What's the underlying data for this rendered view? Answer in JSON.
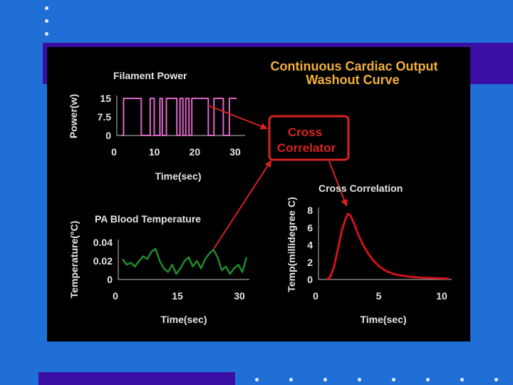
{
  "title": {
    "line1": "Continuous Cardiac Output",
    "line2": "Washout Curve"
  },
  "filament": {
    "title": "Filament Power",
    "ylabel": "Power(w)",
    "yticks": [
      "15",
      "7.5",
      "0"
    ],
    "xticks": [
      "0",
      "10",
      "20",
      "30"
    ],
    "xlabel": "Time(sec)"
  },
  "pa": {
    "title": "PA Blood Temperature",
    "ylabel": "Temperature(°C)",
    "yticks": [
      "0.04",
      "0.02",
      "0"
    ],
    "xticks": [
      "0",
      "15",
      "30"
    ],
    "xlabel": "Time(sec)"
  },
  "correlator": {
    "line1": "Cross",
    "line2": "Correlator"
  },
  "cross": {
    "title": "Cross Correlation",
    "ylabel": "Temp(millidegree C)",
    "yticks": [
      "8",
      "6",
      "4",
      "2",
      "0"
    ],
    "xticks": [
      "0",
      "5",
      "10"
    ],
    "xlabel": "Time(sec)"
  },
  "colors": {
    "background": "#1f6fd6",
    "band": "#3b0fa5",
    "title": "#f2b03a",
    "text": "#e6e6e6",
    "power_trace": "#e066c8",
    "temperature_trace": "#1e8c2a",
    "correlation_curve": "#d0121a",
    "correlator_box": "#d8231f"
  },
  "chart_data": [
    {
      "type": "line",
      "title": "Filament Power",
      "ylabel": "Power(w)",
      "xlabel": "Time(sec)",
      "xlim": [
        0,
        30
      ],
      "ylim": [
        0,
        15
      ],
      "step": true,
      "x": [
        0,
        0.6,
        0.6,
        5.0,
        5.0,
        7.2,
        7.2,
        8.2,
        8.2,
        9.6,
        9.6,
        10.2,
        10.2,
        11.2,
        11.2,
        13.8,
        13.8,
        14.6,
        14.6,
        15.3,
        15.3,
        16.0,
        16.0,
        16.8,
        16.8,
        17.5,
        17.5,
        21.6,
        21.6,
        23.0,
        23.0,
        25.3,
        25.3,
        26.8,
        26.8,
        28.6
      ],
      "values": [
        0,
        0,
        15,
        15,
        0,
        0,
        15,
        15,
        0,
        0,
        15,
        15,
        0,
        0,
        15,
        15,
        0,
        0,
        15,
        15,
        0,
        0,
        15,
        15,
        0,
        0,
        15,
        15,
        0,
        0,
        15,
        15,
        0,
        0,
        15,
        15
      ]
    },
    {
      "type": "line",
      "title": "PA Blood Temperature",
      "ylabel": "Temperature(°C)",
      "xlabel": "Time(sec)",
      "xlim": [
        0,
        30
      ],
      "ylim": [
        0,
        0.04
      ],
      "x": [
        0,
        1,
        2,
        3,
        4,
        5,
        6,
        7,
        8,
        9,
        10,
        11,
        12,
        13,
        14,
        15,
        16,
        17,
        18,
        19,
        20,
        21,
        22,
        23,
        24,
        25,
        26,
        27,
        28,
        29,
        30
      ],
      "values": [
        0.022,
        0.016,
        0.018,
        0.014,
        0.02,
        0.025,
        0.022,
        0.03,
        0.033,
        0.02,
        0.012,
        0.008,
        0.016,
        0.006,
        0.012,
        0.02,
        0.024,
        0.014,
        0.02,
        0.012,
        0.022,
        0.028,
        0.032,
        0.024,
        0.01,
        0.014,
        0.006,
        0.012,
        0.016,
        0.008,
        0.024
      ]
    },
    {
      "type": "line",
      "title": "Cross Correlation",
      "ylabel": "Temp(millidegree C)",
      "xlabel": "Time(sec)",
      "xlim": [
        0,
        10
      ],
      "ylim": [
        0,
        8
      ],
      "x": [
        0.3,
        0.6,
        0.9,
        1.2,
        1.5,
        1.8,
        2.0,
        2.2,
        2.5,
        2.8,
        3.2,
        3.6,
        4.0,
        4.5,
        5.0,
        5.5,
        6.0,
        7.0,
        8.0,
        9.0,
        10.0
      ],
      "values": [
        0.0,
        0.3,
        1.5,
        3.5,
        5.6,
        7.0,
        7.6,
        7.4,
        6.4,
        5.2,
        4.0,
        3.0,
        2.2,
        1.5,
        1.0,
        0.7,
        0.5,
        0.3,
        0.2,
        0.15,
        0.1
      ]
    }
  ]
}
